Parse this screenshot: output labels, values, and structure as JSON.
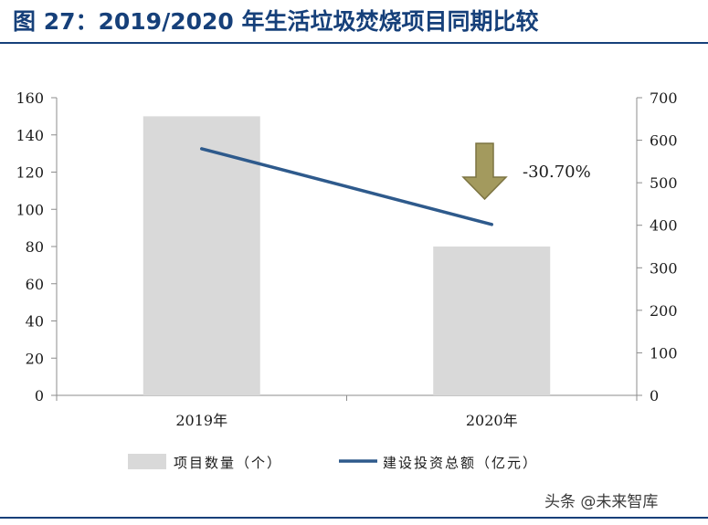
{
  "title": "图 27：2019/2020 年生活垃圾焚烧项目同期比较",
  "chart_data": {
    "type": "bar",
    "categories": [
      "2019年",
      "2020年"
    ],
    "series": [
      {
        "name": "项目数量（个）",
        "type": "bar",
        "axis": "left",
        "values": [
          150,
          80
        ],
        "color": "#d9d9d9"
      },
      {
        "name": "建设投资总额（亿元）",
        "type": "line",
        "axis": "right",
        "values": [
          580,
          402
        ],
        "color": "#2e5a8c"
      }
    ],
    "y_left": {
      "lim": [
        0,
        160
      ],
      "ticks": [
        0,
        20,
        40,
        60,
        80,
        100,
        120,
        140,
        160
      ]
    },
    "y_right": {
      "lim": [
        0,
        700
      ],
      "ticks": [
        0,
        100,
        200,
        300,
        400,
        500,
        600,
        700
      ]
    },
    "annotation": {
      "text": "-30.70%",
      "arrow": "down",
      "arrow_color": "#a39a5e"
    },
    "legend_position": "bottom",
    "grid": false
  },
  "watermark": "头条 @未来智库"
}
